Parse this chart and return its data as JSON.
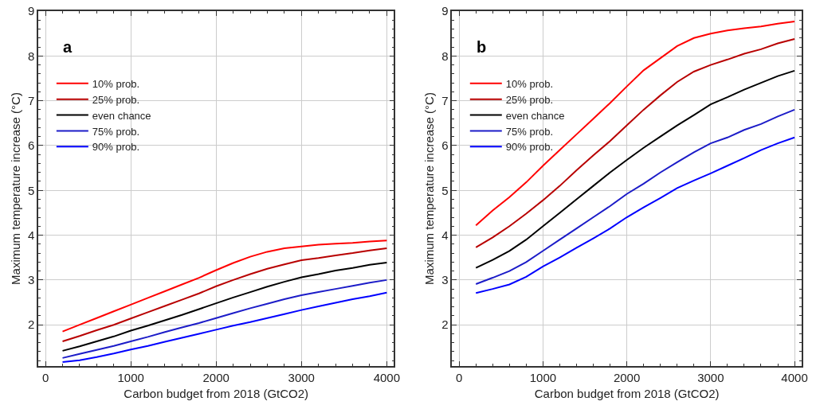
{
  "chart_data": [
    {
      "type": "line",
      "annotations": [
        "a"
      ],
      "xlabel": "Carbon budget from 2018 (GtCO2)",
      "ylabel": "Maximum temperature increase (°C)",
      "x": [
        200,
        400,
        600,
        800,
        1000,
        1200,
        1400,
        1600,
        1800,
        2000,
        2200,
        2400,
        2600,
        2800,
        3000,
        3200,
        3400,
        3600,
        3800,
        4000
      ],
      "xlim": [
        -85,
        4085
      ],
      "xticks": [
        0,
        1000,
        2000,
        3000,
        4000
      ],
      "ylim": [
        1.08,
        9
      ],
      "yticks": [
        2,
        3,
        4,
        5,
        6,
        7,
        8,
        9
      ],
      "grid": true,
      "legend": "top left",
      "marker": "none",
      "line_style": "solid",
      "series": [
        {
          "name": "10% prob.",
          "color": "#ff0000",
          "values": [
            1.85,
            2.0,
            2.15,
            2.3,
            2.45,
            2.6,
            2.75,
            2.9,
            3.05,
            3.22,
            3.38,
            3.52,
            3.63,
            3.71,
            3.75,
            3.79,
            3.81,
            3.83,
            3.86,
            3.88
          ]
        },
        {
          "name": "25% prob.",
          "color": "#b80000",
          "values": [
            1.63,
            1.75,
            1.88,
            2.0,
            2.14,
            2.28,
            2.42,
            2.56,
            2.7,
            2.86,
            3.0,
            3.13,
            3.25,
            3.35,
            3.44,
            3.49,
            3.55,
            3.6,
            3.66,
            3.71
          ]
        },
        {
          "name": "even chance",
          "color": "#000000",
          "values": [
            1.42,
            1.52,
            1.63,
            1.74,
            1.87,
            1.98,
            2.1,
            2.22,
            2.35,
            2.48,
            2.61,
            2.73,
            2.85,
            2.96,
            3.06,
            3.13,
            3.21,
            3.27,
            3.34,
            3.39
          ]
        },
        {
          "name": "75% prob.",
          "color": "#1c1cc8",
          "values": [
            1.26,
            1.35,
            1.44,
            1.53,
            1.63,
            1.73,
            1.84,
            1.94,
            2.04,
            2.15,
            2.26,
            2.37,
            2.47,
            2.57,
            2.66,
            2.73,
            2.8,
            2.87,
            2.94,
            3.0
          ]
        },
        {
          "name": "90% prob.",
          "color": "#0000ff",
          "values": [
            1.17,
            1.21,
            1.28,
            1.36,
            1.45,
            1.53,
            1.62,
            1.71,
            1.8,
            1.89,
            1.98,
            2.06,
            2.15,
            2.24,
            2.33,
            2.41,
            2.49,
            2.57,
            2.64,
            2.72
          ]
        }
      ]
    },
    {
      "type": "line",
      "annotations": [
        "b"
      ],
      "xlabel": "Carbon budget from 2018 (GtCO2)",
      "ylabel": "Maximum temperature increase (°C)",
      "x": [
        200,
        400,
        600,
        800,
        1000,
        1200,
        1400,
        1600,
        1800,
        2000,
        2200,
        2400,
        2600,
        2800,
        3000,
        3200,
        3400,
        3600,
        3800,
        4000
      ],
      "xlim": [
        -85,
        4085
      ],
      "xticks": [
        0,
        1000,
        2000,
        3000,
        4000
      ],
      "ylim": [
        1.08,
        9
      ],
      "yticks": [
        2,
        3,
        4,
        5,
        6,
        7,
        8,
        9
      ],
      "grid": true,
      "legend": "top left",
      "marker": "none",
      "line_style": "solid",
      "series": [
        {
          "name": "10% prob.",
          "color": "#ff0000",
          "values": [
            4.22,
            4.55,
            4.85,
            5.18,
            5.55,
            5.9,
            6.25,
            6.6,
            6.95,
            7.32,
            7.68,
            7.95,
            8.22,
            8.4,
            8.5,
            8.57,
            8.62,
            8.66,
            8.72,
            8.77
          ]
        },
        {
          "name": "25% prob.",
          "color": "#b80000",
          "values": [
            3.73,
            3.95,
            4.2,
            4.48,
            4.78,
            5.1,
            5.45,
            5.78,
            6.1,
            6.45,
            6.8,
            7.12,
            7.42,
            7.65,
            7.8,
            7.92,
            8.05,
            8.15,
            8.28,
            8.38
          ]
        },
        {
          "name": "even chance",
          "color": "#000000",
          "values": [
            3.27,
            3.45,
            3.65,
            3.9,
            4.2,
            4.5,
            4.8,
            5.1,
            5.4,
            5.68,
            5.95,
            6.2,
            6.45,
            6.68,
            6.92,
            7.08,
            7.25,
            7.4,
            7.55,
            7.67
          ]
        },
        {
          "name": "75% prob.",
          "color": "#1c1cc8",
          "values": [
            2.91,
            3.05,
            3.2,
            3.4,
            3.65,
            3.9,
            4.15,
            4.4,
            4.65,
            4.92,
            5.15,
            5.4,
            5.63,
            5.85,
            6.05,
            6.18,
            6.35,
            6.48,
            6.65,
            6.8
          ]
        },
        {
          "name": "90% prob.",
          "color": "#0000ff",
          "values": [
            2.71,
            2.8,
            2.9,
            3.07,
            3.3,
            3.5,
            3.72,
            3.93,
            4.15,
            4.4,
            4.62,
            4.83,
            5.05,
            5.22,
            5.38,
            5.55,
            5.72,
            5.9,
            6.05,
            6.18
          ]
        }
      ]
    }
  ]
}
